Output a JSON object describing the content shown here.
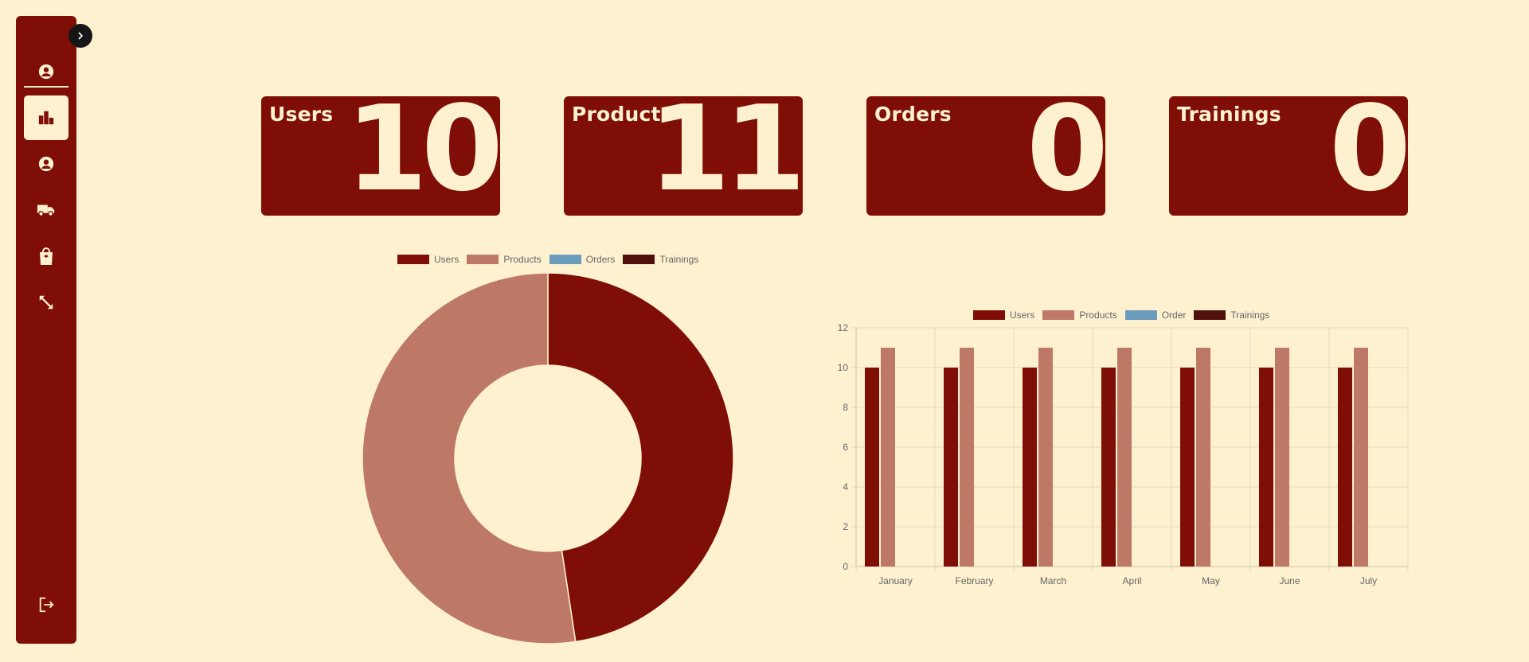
{
  "sidebar": {
    "toggle_icon": "chevron-right-icon",
    "items": [
      {
        "name": "profile-icon"
      },
      {
        "name": "chart-bar-icon",
        "active": true
      },
      {
        "name": "user-icon"
      },
      {
        "name": "truck-icon"
      },
      {
        "name": "shopping-bag-icon"
      },
      {
        "name": "expand-icon"
      }
    ],
    "logout_icon": "logout-icon"
  },
  "cards": [
    {
      "title": "Users",
      "value": "10"
    },
    {
      "title": "Products",
      "value": "11"
    },
    {
      "title": "Orders",
      "value": "0"
    },
    {
      "title": "Trainings",
      "value": "0"
    }
  ],
  "colors": {
    "background": "#fdf1d0",
    "primary": "#7f0e06",
    "products": "#bd7966",
    "orders": "#6b9bbd",
    "trainings": "#4f0f0b"
  },
  "chart_data": [
    {
      "type": "pie",
      "legend": [
        "Users",
        "Products",
        "Orders",
        "Trainings"
      ],
      "values": [
        10,
        11,
        0,
        0
      ],
      "colors": [
        "#7f0e06",
        "#bd7966",
        "#6b9bbd",
        "#4f0f0b"
      ],
      "legend_position": "top"
    },
    {
      "type": "bar",
      "categories": [
        "January",
        "February",
        "March",
        "April",
        "May",
        "June",
        "July"
      ],
      "series": [
        {
          "name": "Users",
          "values": [
            10,
            10,
            10,
            10,
            10,
            10,
            10
          ],
          "color": "#7f0e06"
        },
        {
          "name": "Products",
          "values": [
            11,
            11,
            11,
            11,
            11,
            11,
            11
          ],
          "color": "#bd7966"
        },
        {
          "name": "Order",
          "values": [
            0,
            0,
            0,
            0,
            0,
            0,
            0
          ],
          "color": "#6b9bbd"
        },
        {
          "name": "Trainings",
          "values": [
            0,
            0,
            0,
            0,
            0,
            0,
            0
          ],
          "color": "#4f0f0b"
        }
      ],
      "ylim": [
        0,
        12
      ],
      "yticks": [
        "0",
        "2",
        "4",
        "6",
        "8",
        "10",
        "12"
      ],
      "grid": true,
      "legend_position": "top"
    }
  ]
}
